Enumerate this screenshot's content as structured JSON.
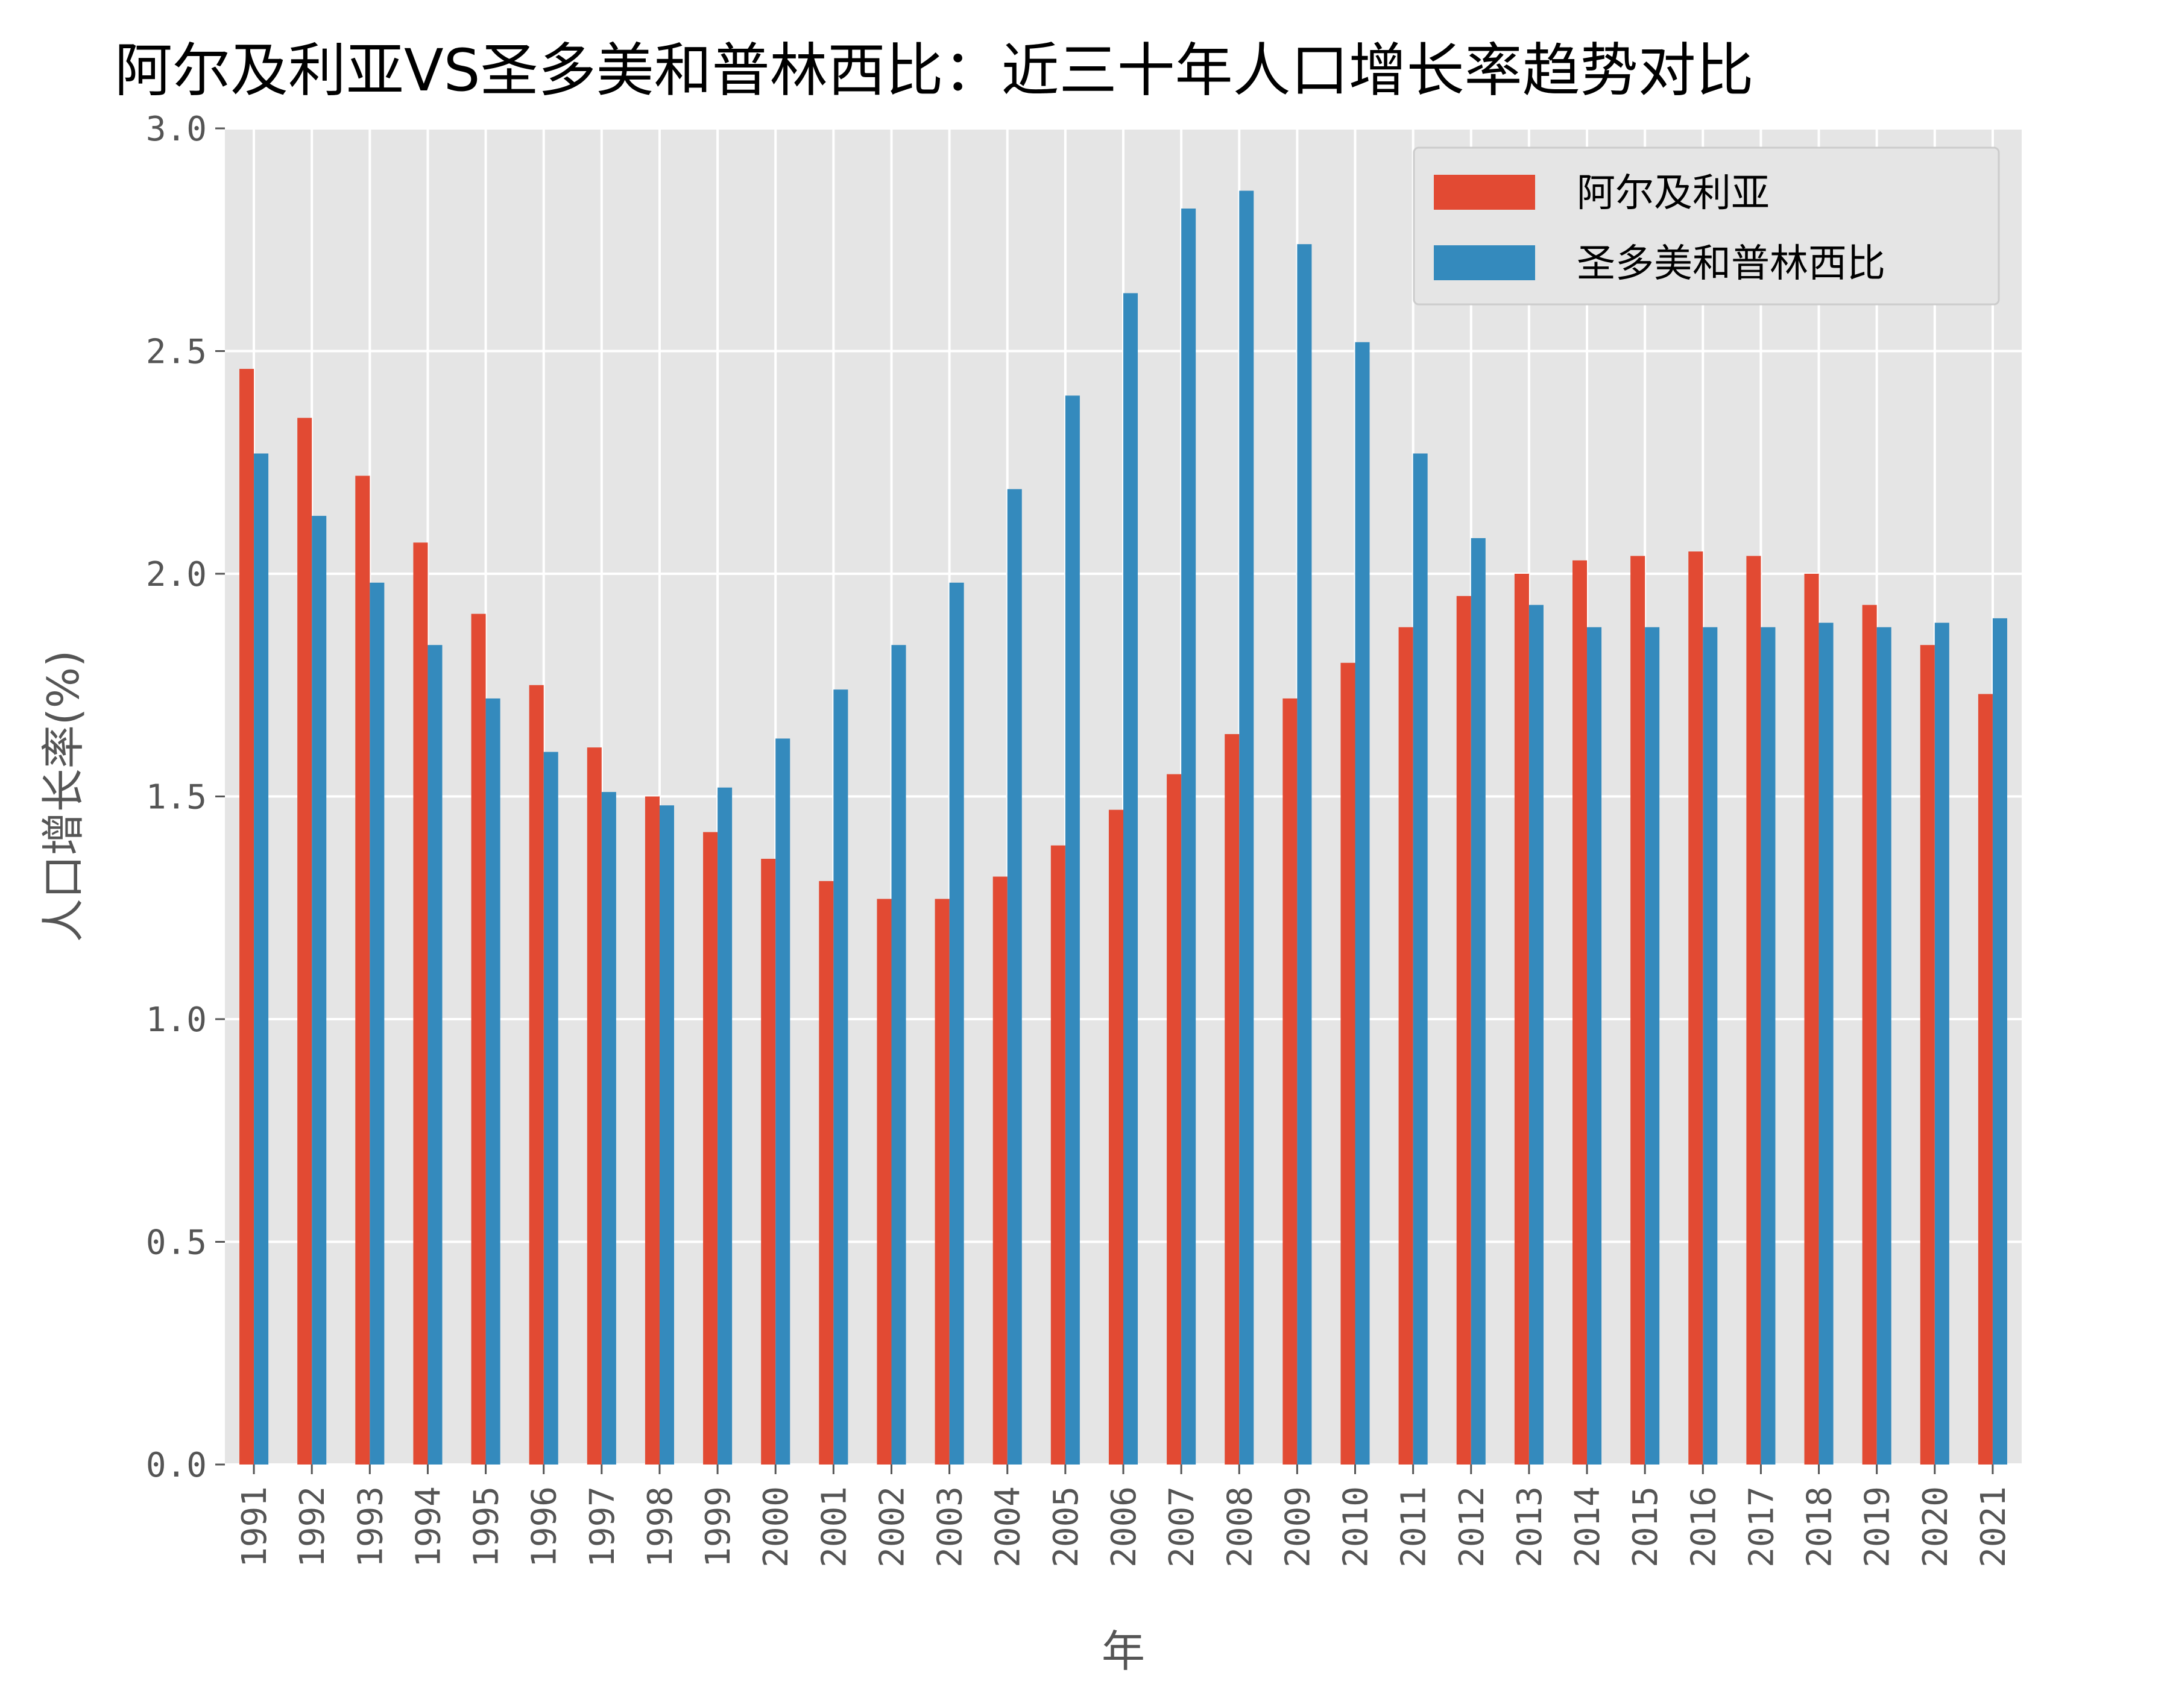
{
  "chart_data": {
    "type": "bar",
    "title": "阿尔及利亚VS圣多美和普林西比：近三十年人口增长率趋势对比",
    "xlabel": "年",
    "ylabel": "人口增长率(%)",
    "ylim": [
      0,
      3.0
    ],
    "yticks": [
      "0.0",
      "0.5",
      "1.0",
      "1.5",
      "2.0",
      "2.5",
      "3.0"
    ],
    "grid": true,
    "legend_position": "top-right",
    "categories": [
      "1991",
      "1992",
      "1993",
      "1994",
      "1995",
      "1996",
      "1997",
      "1998",
      "1999",
      "2000",
      "2001",
      "2002",
      "2003",
      "2004",
      "2005",
      "2006",
      "2007",
      "2008",
      "2009",
      "2010",
      "2011",
      "2012",
      "2013",
      "2014",
      "2015",
      "2016",
      "2017",
      "2018",
      "2019",
      "2020",
      "2021"
    ],
    "series": [
      {
        "name": "阿尔及利亚",
        "color": "#E24A33",
        "values": [
          2.46,
          2.35,
          2.22,
          2.07,
          1.91,
          1.75,
          1.61,
          1.5,
          1.42,
          1.36,
          1.31,
          1.27,
          1.27,
          1.32,
          1.39,
          1.47,
          1.55,
          1.64,
          1.72,
          1.8,
          1.88,
          1.95,
          2.0,
          2.03,
          2.04,
          2.05,
          2.04,
          2.0,
          1.93,
          1.84,
          1.73
        ]
      },
      {
        "name": "圣多美和普林西比",
        "color": "#348ABD",
        "values": [
          2.27,
          2.13,
          1.98,
          1.84,
          1.72,
          1.6,
          1.51,
          1.48,
          1.52,
          1.63,
          1.74,
          1.84,
          1.98,
          2.19,
          2.4,
          2.63,
          2.82,
          2.86,
          2.74,
          2.52,
          2.27,
          2.08,
          1.93,
          1.88,
          1.88,
          1.88,
          1.88,
          1.89,
          1.88,
          1.89,
          1.9
        ]
      }
    ]
  }
}
